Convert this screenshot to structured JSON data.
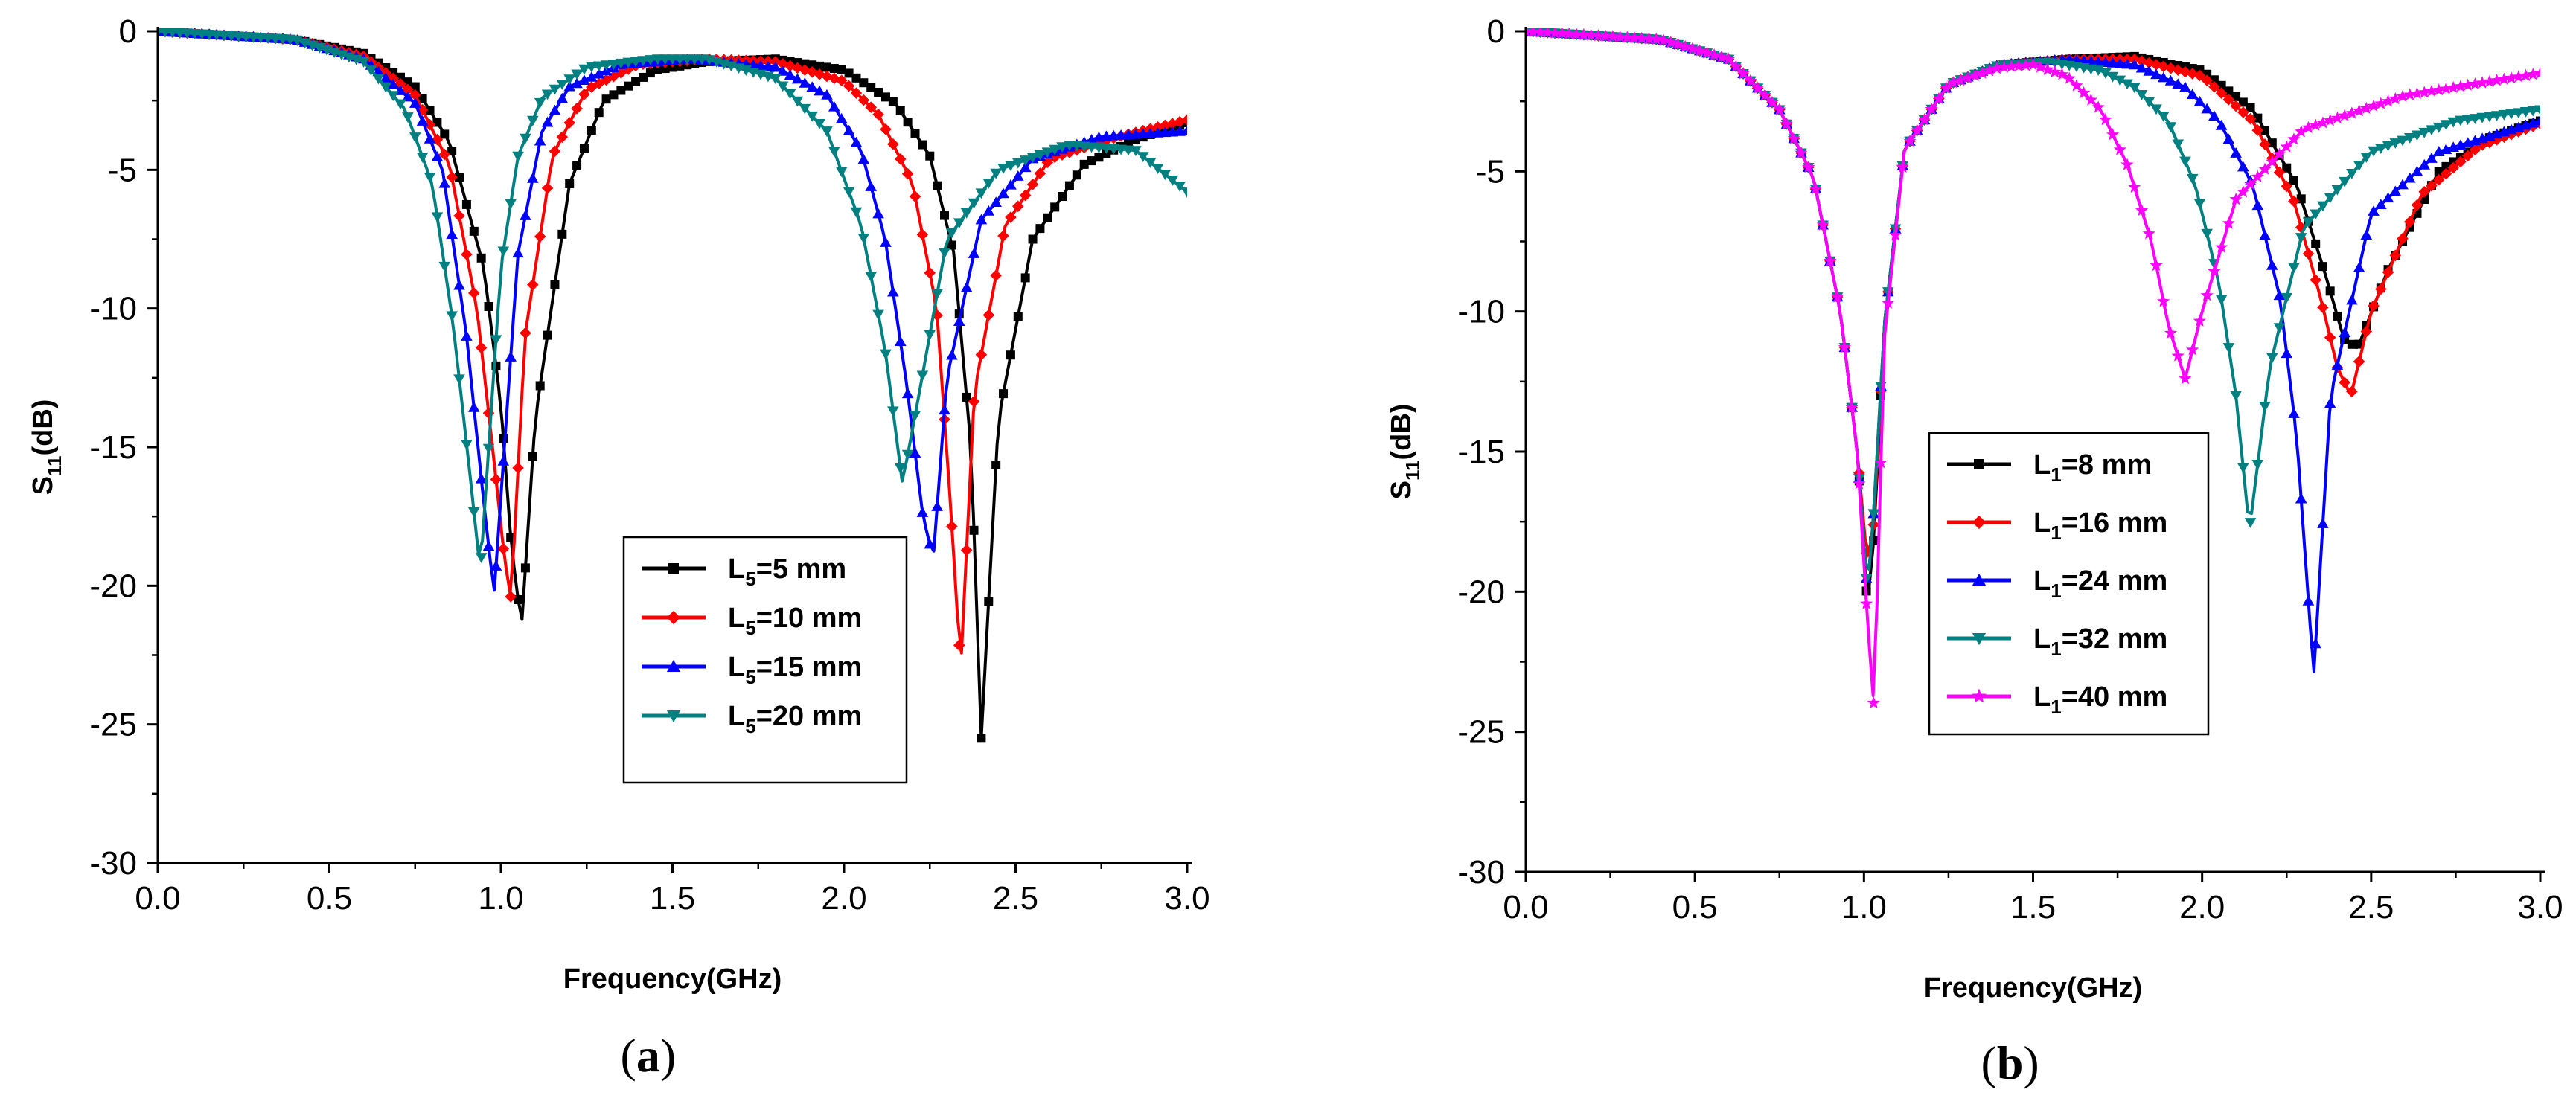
{
  "chart_data": [
    {
      "type": "line",
      "panel": "a",
      "panel_label": "a",
      "xlabel": "Frequency(GHz)",
      "ylabel_main": "S",
      "ylabel_sub": "11",
      "ylabel_unit": "(dB)",
      "xlim": [
        0,
        3
      ],
      "ylim": [
        -30,
        0
      ],
      "xticks": [
        "0.0",
        "0.5",
        "1.0",
        "1.5",
        "2.0",
        "2.5",
        "3.0"
      ],
      "yticks": [
        "0",
        "-5",
        "-10",
        "-15",
        "-20",
        "-25",
        "-30"
      ],
      "series": [
        {
          "name": "L5=5 mm",
          "label_main": "L",
          "label_sub": "5",
          "label_rest": "=5 mm",
          "color": "#000000",
          "marker": "square",
          "x": [
            0,
            0.4,
            0.6,
            0.75,
            0.85,
            0.95,
            1.0,
            1.03,
            1.06,
            1.1,
            1.2,
            1.3,
            1.45,
            1.6,
            1.8,
            2.0,
            2.15,
            2.25,
            2.32,
            2.37,
            2.4,
            2.45,
            2.55,
            2.7,
            2.85,
            3.0
          ],
          "y": [
            0,
            -0.3,
            -0.8,
            -2.0,
            -4.0,
            -8.5,
            -13.5,
            -18.5,
            -21.5,
            -14.0,
            -5.5,
            -2.5,
            -1.4,
            -1.1,
            -1.0,
            -1.4,
            -2.6,
            -4.5,
            -8.0,
            -15.0,
            -25.5,
            -14.0,
            -7.5,
            -4.8,
            -3.9,
            -3.3
          ]
        },
        {
          "name": "L5=10 mm",
          "label_main": "L",
          "label_sub": "5",
          "label_rest": "=10 mm",
          "color": "#ff0000",
          "marker": "diamond",
          "x": [
            0,
            0.4,
            0.6,
            0.75,
            0.85,
            0.93,
            0.98,
            1.01,
            1.03,
            1.07,
            1.15,
            1.25,
            1.4,
            1.6,
            1.8,
            2.0,
            2.1,
            2.2,
            2.27,
            2.31,
            2.34,
            2.38,
            2.47,
            2.6,
            2.8,
            3.0
          ],
          "y": [
            0,
            -0.3,
            -0.9,
            -2.3,
            -4.8,
            -10.0,
            -15.5,
            -19.0,
            -20.5,
            -11.0,
            -4.5,
            -2.1,
            -1.2,
            -1.0,
            -1.1,
            -1.8,
            -3.0,
            -5.5,
            -10.0,
            -17.0,
            -23.0,
            -13.0,
            -7.0,
            -4.6,
            -3.8,
            -3.2
          ]
        },
        {
          "name": "L5=15 mm",
          "label_main": "L",
          "label_sub": "5",
          "label_rest": "=15 mm",
          "color": "#0000ff",
          "marker": "triangle-up",
          "x": [
            0,
            0.4,
            0.6,
            0.75,
            0.83,
            0.9,
            0.95,
            0.98,
            1.01,
            1.05,
            1.12,
            1.2,
            1.35,
            1.55,
            1.8,
            1.95,
            2.05,
            2.12,
            2.18,
            2.23,
            2.26,
            2.3,
            2.4,
            2.55,
            2.75,
            3.0
          ],
          "y": [
            0,
            -0.3,
            -1.0,
            -2.6,
            -5.0,
            -11.0,
            -17.0,
            -20.3,
            -15.0,
            -8.0,
            -3.6,
            -2.0,
            -1.2,
            -1.0,
            -1.3,
            -2.3,
            -4.3,
            -7.5,
            -12.5,
            -17.5,
            -19.0,
            -12.5,
            -6.8,
            -4.6,
            -3.8,
            -3.6
          ]
        },
        {
          "name": "L5=20 mm",
          "label_main": "L",
          "label_sub": "5",
          "label_rest": "=20 mm",
          "color": "#008080",
          "marker": "triangle-down",
          "x": [
            0,
            0.4,
            0.6,
            0.72,
            0.8,
            0.86,
            0.91,
            0.94,
            0.97,
            1.0,
            1.05,
            1.12,
            1.25,
            1.45,
            1.6,
            1.8,
            1.95,
            2.05,
            2.12,
            2.17,
            2.22,
            2.3,
            2.45,
            2.65,
            2.85,
            3.0
          ],
          "y": [
            0,
            -0.3,
            -1.1,
            -2.8,
            -5.5,
            -10.5,
            -16.0,
            -19.5,
            -14.0,
            -8.5,
            -4.5,
            -2.4,
            -1.3,
            -1.0,
            -1.0,
            -1.7,
            -3.6,
            -7.0,
            -11.5,
            -16.3,
            -13.0,
            -7.5,
            -5.0,
            -4.1,
            -4.3,
            -5.8
          ]
        }
      ],
      "legend": [
        "L5=5 mm",
        "L5=10 mm",
        "L5=15 mm",
        "L5=20 mm"
      ],
      "legend_position": "lower-right"
    },
    {
      "type": "line",
      "panel": "b",
      "panel_label": "b",
      "xlabel": "Frequency(GHz)",
      "ylabel_main": "S",
      "ylabel_sub": "11",
      "ylabel_unit": "(dB)",
      "xlim": [
        0,
        3
      ],
      "ylim": [
        -30,
        0
      ],
      "xticks": [
        "0.0",
        "0.5",
        "1.0",
        "1.5",
        "2.0",
        "2.5",
        "3.0"
      ],
      "yticks": [
        "0",
        "-5",
        "-10",
        "-15",
        "-20",
        "-25",
        "-30"
      ],
      "series": [
        {
          "name": "L1=8 mm",
          "label_main": "L",
          "label_sub": "1",
          "label_rest": "=8 mm",
          "color": "#000000",
          "marker": "square",
          "x": [
            0,
            0.4,
            0.6,
            0.75,
            0.85,
            0.93,
            0.98,
            1.01,
            1.03,
            1.06,
            1.12,
            1.25,
            1.4,
            1.6,
            1.8,
            2.0,
            2.15,
            2.28,
            2.36,
            2.42,
            2.46,
            2.55,
            2.7,
            2.85,
            3.0
          ],
          "y": [
            0,
            -0.3,
            -1.0,
            -2.8,
            -5.2,
            -10.0,
            -15.0,
            -20.5,
            -18.0,
            -10.5,
            -4.2,
            -1.9,
            -1.2,
            -1.0,
            -0.9,
            -1.4,
            -2.8,
            -5.5,
            -8.5,
            -11.0,
            -11.3,
            -8.5,
            -5.0,
            -3.8,
            -3.2
          ]
        },
        {
          "name": "L1=16 mm",
          "label_main": "L",
          "label_sub": "1",
          "label_rest": "=16 mm",
          "color": "#ff0000",
          "marker": "diamond",
          "x": [
            0,
            0.4,
            0.6,
            0.75,
            0.85,
            0.93,
            0.98,
            1.01,
            1.03,
            1.06,
            1.12,
            1.25,
            1.4,
            1.6,
            1.8,
            2.0,
            2.15,
            2.27,
            2.35,
            2.4,
            2.44,
            2.5,
            2.65,
            2.82,
            3.0
          ],
          "y": [
            0,
            -0.3,
            -1.0,
            -2.8,
            -5.2,
            -10.0,
            -15.0,
            -19.0,
            -17.5,
            -10.5,
            -4.2,
            -1.9,
            -1.2,
            -1.0,
            -1.0,
            -1.6,
            -3.2,
            -6.0,
            -9.5,
            -12.0,
            -13.0,
            -10.0,
            -5.8,
            -4.1,
            -3.3
          ]
        },
        {
          "name": "L1=24 mm",
          "label_main": "L",
          "label_sub": "1",
          "label_rest": "=24 mm",
          "color": "#0000ff",
          "marker": "triangle-up",
          "x": [
            0,
            0.4,
            0.6,
            0.75,
            0.85,
            0.93,
            0.98,
            1.01,
            1.03,
            1.06,
            1.12,
            1.25,
            1.4,
            1.6,
            1.8,
            1.95,
            2.05,
            2.15,
            2.23,
            2.28,
            2.33,
            2.38,
            2.5,
            2.7,
            3.0
          ],
          "y": [
            0,
            -0.3,
            -1.0,
            -2.8,
            -5.2,
            -10.0,
            -15.0,
            -20.0,
            -17.0,
            -10.5,
            -4.2,
            -1.9,
            -1.2,
            -1.0,
            -1.2,
            -2.0,
            -3.2,
            -5.5,
            -9.5,
            -14.5,
            -23.0,
            -13.0,
            -6.5,
            -4.3,
            -3.2
          ]
        },
        {
          "name": "L1=32 mm",
          "label_main": "L",
          "label_sub": "1",
          "label_rest": "=32 mm",
          "color": "#008080",
          "marker": "triangle-down",
          "x": [
            0,
            0.4,
            0.6,
            0.75,
            0.85,
            0.93,
            0.98,
            1.01,
            1.03,
            1.06,
            1.12,
            1.25,
            1.4,
            1.55,
            1.7,
            1.8,
            1.9,
            1.98,
            2.05,
            2.1,
            2.14,
            2.2,
            2.3,
            2.5,
            2.75,
            3.0
          ],
          "y": [
            0,
            -0.3,
            -1.0,
            -2.8,
            -5.2,
            -10.0,
            -15.0,
            -20.0,
            -17.0,
            -10.5,
            -4.2,
            -1.9,
            -1.2,
            -1.1,
            -1.4,
            -2.0,
            -3.2,
            -5.5,
            -9.0,
            -13.0,
            -17.8,
            -12.0,
            -7.0,
            -4.3,
            -3.2,
            -2.8
          ]
        },
        {
          "name": "L1=40 mm",
          "label_main": "L",
          "label_sub": "1",
          "label_rest": "=40 mm",
          "color": "#ff00ff",
          "marker": "star",
          "x": [
            0,
            0.4,
            0.6,
            0.75,
            0.85,
            0.93,
            0.98,
            1.01,
            1.03,
            1.06,
            1.12,
            1.25,
            1.4,
            1.5,
            1.6,
            1.7,
            1.78,
            1.85,
            1.9,
            1.95,
            2.0,
            2.1,
            2.3,
            2.6,
            3.0
          ],
          "y": [
            0,
            -0.3,
            -1.0,
            -2.8,
            -5.2,
            -10.0,
            -15.0,
            -21.0,
            -24.2,
            -11.0,
            -4.2,
            -1.9,
            -1.3,
            -1.2,
            -1.6,
            -2.8,
            -4.8,
            -7.5,
            -10.5,
            -12.4,
            -10.0,
            -6.0,
            -3.5,
            -2.3,
            -1.5
          ]
        }
      ],
      "legend": [
        "L1=8 mm",
        "L1=16 mm",
        "L1=24 mm",
        "L1=32 mm",
        "L1=40 mm"
      ],
      "legend_position": "center"
    }
  ]
}
